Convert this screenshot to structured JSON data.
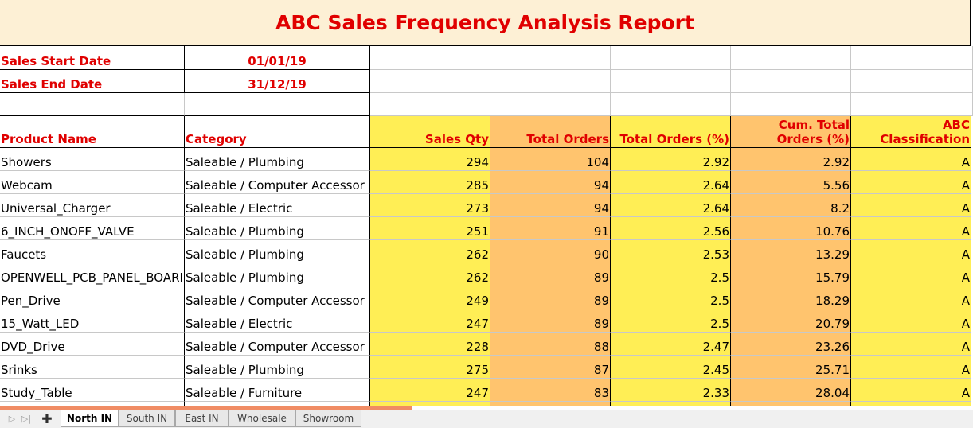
{
  "report": {
    "title": "ABC Sales Frequency Analysis Report",
    "start_label": "Sales Start Date",
    "start_value": "01/01/19",
    "end_label": "Sales End Date",
    "end_value": "31/12/19"
  },
  "headers": {
    "product": "Product Name",
    "category": "Category",
    "sales_qty": "Sales Qty",
    "total_orders": "Total Orders",
    "total_orders_pct": "Total Orders (%)",
    "cum_line1": "Cum. Total",
    "cum_line2": "Orders (%)",
    "abc_line1": "ABC",
    "abc_line2": "Classification"
  },
  "rows": [
    {
      "product": "Showers",
      "category": "Saleable / Plumbing",
      "qty": "294",
      "orders": "104",
      "pct": "2.92",
      "cum": "2.92",
      "abc": "A"
    },
    {
      "product": "Webcam",
      "category": "Saleable / Computer Accessor",
      "qty": "285",
      "orders": "94",
      "pct": "2.64",
      "cum": "5.56",
      "abc": "A"
    },
    {
      "product": "Universal_Charger",
      "category": "Saleable / Electric",
      "qty": "273",
      "orders": "94",
      "pct": "2.64",
      "cum": "8.2",
      "abc": "A"
    },
    {
      "product": "6_INCH_ONOFF_VALVE",
      "category": "Saleable / Plumbing",
      "qty": "251",
      "orders": "91",
      "pct": "2.56",
      "cum": "10.76",
      "abc": "A"
    },
    {
      "product": "Faucets",
      "category": "Saleable / Plumbing",
      "qty": "262",
      "orders": "90",
      "pct": "2.53",
      "cum": "13.29",
      "abc": "A"
    },
    {
      "product": "OPENWELL_PCB_PANEL_BOARI",
      "category": "Saleable / Plumbing",
      "qty": "262",
      "orders": "89",
      "pct": "2.5",
      "cum": "15.79",
      "abc": "A"
    },
    {
      "product": "Pen_Drive",
      "category": "Saleable / Computer Accessor",
      "qty": "249",
      "orders": "89",
      "pct": "2.5",
      "cum": "18.29",
      "abc": "A"
    },
    {
      "product": "15_Watt_LED",
      "category": "Saleable / Electric",
      "qty": "247",
      "orders": "89",
      "pct": "2.5",
      "cum": "20.79",
      "abc": "A"
    },
    {
      "product": "DVD_Drive",
      "category": "Saleable / Computer Accessor",
      "qty": "228",
      "orders": "88",
      "pct": "2.47",
      "cum": "23.26",
      "abc": "A"
    },
    {
      "product": "Srinks",
      "category": "Saleable / Plumbing",
      "qty": "275",
      "orders": "87",
      "pct": "2.45",
      "cum": "25.71",
      "abc": "A"
    },
    {
      "product": "Study_Table",
      "category": "Saleable / Furniture",
      "qty": "247",
      "orders": "83",
      "pct": "2.33",
      "cum": "28.04",
      "abc": "A"
    }
  ],
  "sheet_tabs": [
    {
      "label": "North IN",
      "active": true
    },
    {
      "label": "South IN",
      "active": false
    },
    {
      "label": "East IN",
      "active": false
    },
    {
      "label": "Wholesale",
      "active": false
    },
    {
      "label": "Showroom",
      "active": false
    }
  ],
  "colors": {
    "title_band": "#fdf0d5",
    "header_red": "#e00000",
    "yellow_col": "#ffee55",
    "orange_col": "#ffc46e",
    "progress": "#f08c64"
  }
}
